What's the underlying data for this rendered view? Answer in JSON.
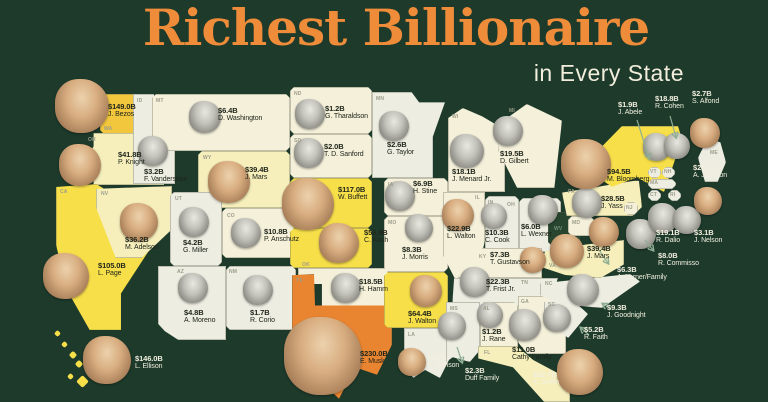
{
  "header": {
    "title": "Richest Billionaire",
    "subtitle": "in Every State"
  },
  "palette": {
    "background": "#1d3a2b",
    "title_orange": "#ef8c3a",
    "subtitle_cream": "#f2eddc",
    "tile_gold": "#f2c73e",
    "tile_yellow": "#f7df4a",
    "tile_pale_yellow": "#f6efbc",
    "tile_cream": "#f4f0da",
    "tile_white": "#ededе2",
    "tile_orange": "#e98430",
    "tile_dark": "#27452f",
    "text_dark": "#20261b",
    "text_light": "#f2efdf",
    "arrow_green": "#8fae94"
  },
  "states": [
    {
      "abbr": "WA",
      "value": "$149.0B",
      "name": "J. Bezos"
    },
    {
      "abbr": "OR",
      "value": "$41.8B",
      "name": "P. Knight"
    },
    {
      "abbr": "CA",
      "value": "$105.0B",
      "name": "L. Page"
    },
    {
      "abbr": "NV",
      "value": "$36.2B",
      "name": "M. Adelson"
    },
    {
      "abbr": "ID",
      "value": "$3.2B",
      "name": "F. Vandersloot"
    },
    {
      "abbr": "MT",
      "value": "$6.4B",
      "name": "D. Washington"
    },
    {
      "abbr": "WY",
      "value": "$39.4B",
      "name": "J. Mars"
    },
    {
      "abbr": "UT",
      "value": "$4.2B",
      "name": "G. Miller"
    },
    {
      "abbr": "CO",
      "value": "$10.8B",
      "name": "P. Anschutz"
    },
    {
      "abbr": "AZ",
      "value": "$4.8B",
      "name": "A. Moreno"
    },
    {
      "abbr": "NM",
      "value": "$1.7B",
      "name": "R. Corio"
    },
    {
      "abbr": "ND",
      "value": "$1.2B",
      "name": "G. Tharaldson"
    },
    {
      "abbr": "SD",
      "value": "$2.0B",
      "name": "T. D. Sanford"
    },
    {
      "abbr": "NE",
      "value": "$117.0B",
      "name": "W. Buffett"
    },
    {
      "abbr": "KS",
      "value": "$56.9B",
      "name": "C. Koch"
    },
    {
      "abbr": "OK",
      "value": "$18.5B",
      "name": "H. Hamm"
    },
    {
      "abbr": "TX",
      "value": "$230.0B",
      "name": "E. Musk"
    },
    {
      "abbr": "MN",
      "value": "$2.6B",
      "name": "G. Taylor"
    },
    {
      "abbr": "IA",
      "value": "$6.9B",
      "name": "H. Stine"
    },
    {
      "abbr": "MO",
      "value": "$8.3B",
      "name": "J. Morris"
    },
    {
      "abbr": "AR",
      "value": "$64.4B",
      "name": "J. Walton"
    },
    {
      "abbr": "LA",
      "value": "$4.7B",
      "name": "G. Benson"
    },
    {
      "abbr": "WI",
      "value": "$18.1B",
      "name": "J. Menard Jr."
    },
    {
      "abbr": "IL",
      "value": "$22.9B",
      "name": "L. Walton"
    },
    {
      "abbr": "IN",
      "value": "$10.3B",
      "name": "C. Cook"
    },
    {
      "abbr": "MI",
      "value": "$19.5B",
      "name": "D. Gilbert"
    },
    {
      "abbr": "OH",
      "value": "$6.0B",
      "name": "L. Wexner"
    },
    {
      "abbr": "KY",
      "value": "$7.3B",
      "name": "T. Gustavson"
    },
    {
      "abbr": "TN",
      "value": "$22.3B",
      "name": "T. Frist Jr."
    },
    {
      "abbr": "MS",
      "value": "$2.3B",
      "name": "Duff Family"
    },
    {
      "abbr": "AL",
      "value": "$1.2B",
      "name": "J. Rane"
    },
    {
      "abbr": "GA",
      "value": "$11.0B",
      "name": "Cathy Family"
    },
    {
      "abbr": "FL",
      "value": "$32.7B",
      "name": "K. Griffin"
    },
    {
      "abbr": "SC",
      "value": "$5.2B",
      "name": "R. Faith"
    },
    {
      "abbr": "NC",
      "value": "$9.3B",
      "name": "J. Goodnight"
    },
    {
      "abbr": "VA",
      "value": "$39.4B",
      "name": "J. Mars"
    },
    {
      "abbr": "WV",
      "value": "",
      "name": ""
    },
    {
      "abbr": "MD",
      "value": "$6.3B",
      "name": "A. Lerner/Family"
    },
    {
      "abbr": "DE",
      "value": "",
      "name": ""
    },
    {
      "abbr": "PA",
      "value": "$28.5B",
      "name": "J. Yass"
    },
    {
      "abbr": "NY",
      "value": "$94.5B",
      "name": "M. Bloomberg"
    },
    {
      "abbr": "NJ",
      "value": "$8.0B",
      "name": "R. Commisso"
    },
    {
      "abbr": "CT",
      "value": "$19.1B",
      "name": "R. Dalio"
    },
    {
      "abbr": "RI",
      "value": "$3.1B",
      "name": "J. Nelson"
    },
    {
      "abbr": "MA",
      "value": "$21.0B",
      "name": "A. Johnson"
    },
    {
      "abbr": "VT",
      "value": "$1.9B",
      "name": "J. Abele"
    },
    {
      "abbr": "NH",
      "value": "$18.8B",
      "name": "R. Cohen"
    },
    {
      "abbr": "ME",
      "value": "$2.7B",
      "name": "S. Alfond"
    },
    {
      "abbr": "HI",
      "value": "$146.0B",
      "name": "L. Ellison"
    }
  ]
}
